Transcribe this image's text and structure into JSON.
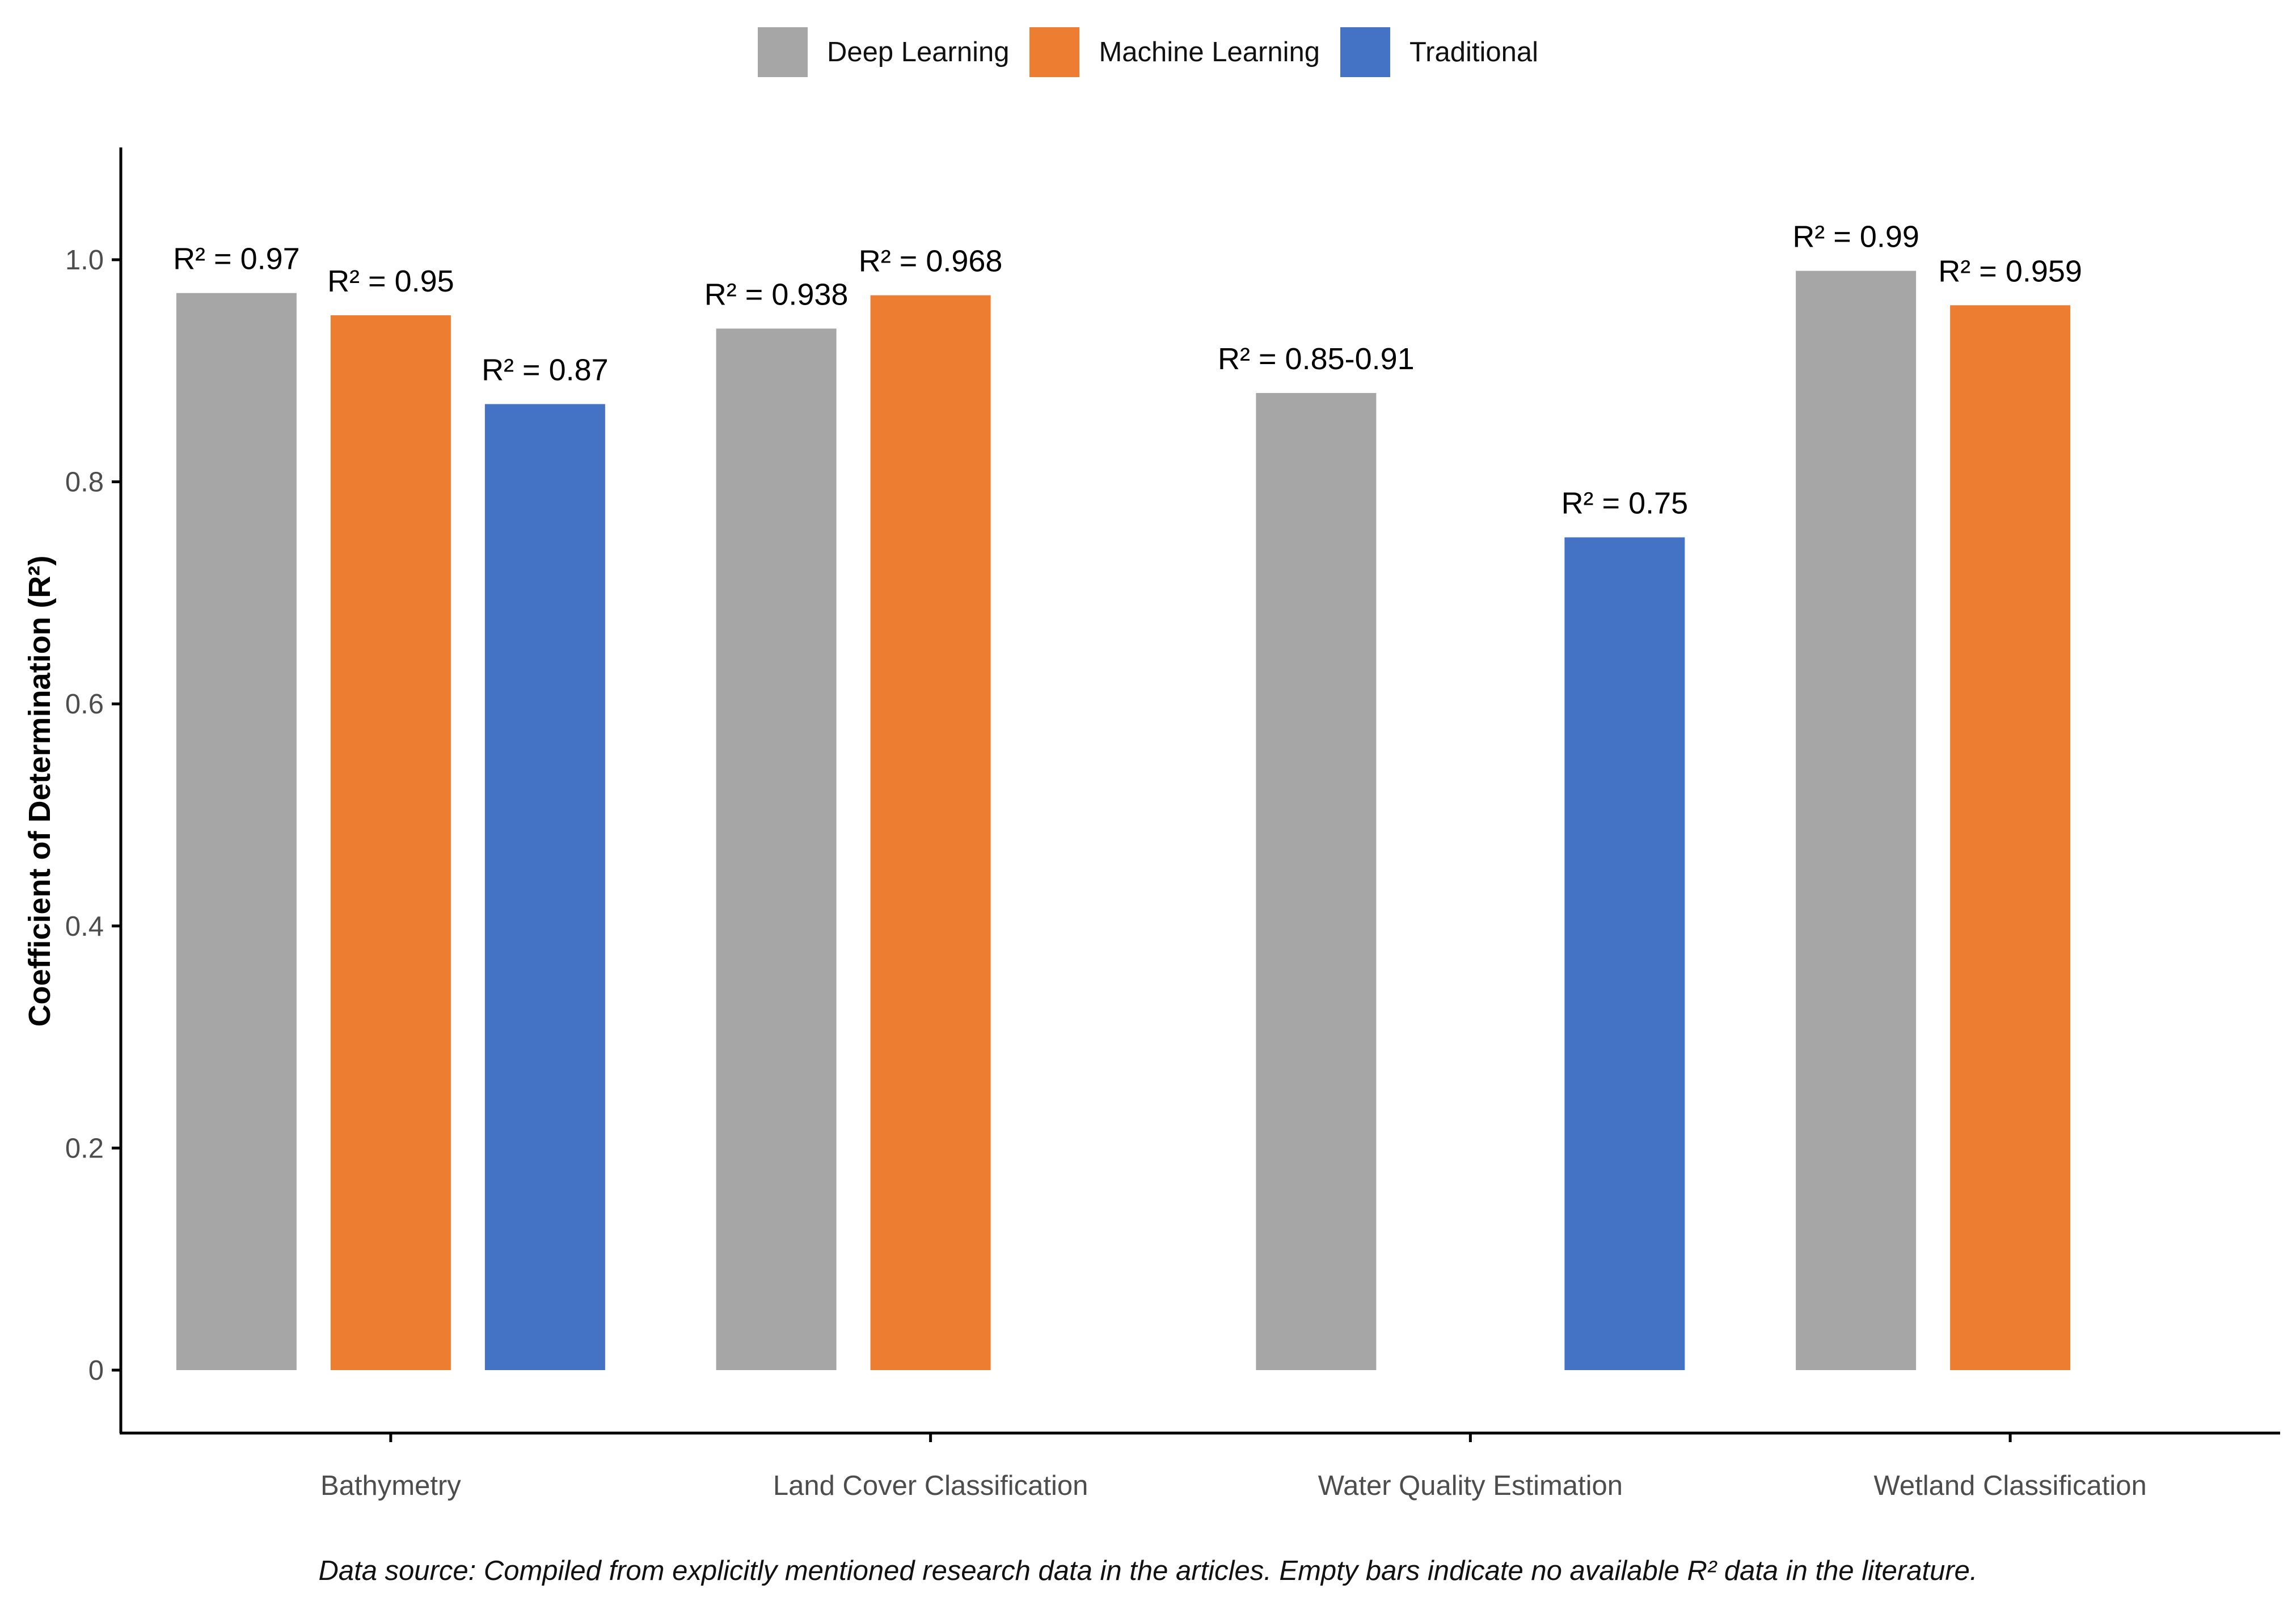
{
  "legend": {
    "placement": "top",
    "items": [
      {
        "label": "Deep Learning",
        "color": "#a6a6a6"
      },
      {
        "label": "Machine Learning",
        "color": "#ed7d31"
      },
      {
        "label": "Traditional",
        "color": "#4472c4"
      }
    ]
  },
  "caption": "Data source: Compiled from explicitly mentioned research data in the articles. Empty bars indicate no available R² data in the literature.",
  "chart_data": {
    "type": "bar",
    "categories": [
      "Bathymetry",
      "Land Cover Classification",
      "Water Quality Estimation",
      "Wetland Classification"
    ],
    "series": [
      {
        "name": "Deep Learning",
        "color": "#a6a6a6",
        "values": [
          0.97,
          0.938,
          0.88,
          0.99
        ],
        "labels": [
          "R² = 0.97",
          "R² = 0.938",
          "R² = 0.85-0.91",
          "R² = 0.99"
        ]
      },
      {
        "name": "Machine Learning",
        "color": "#ed7d31",
        "values": [
          0.95,
          0.968,
          null,
          0.959
        ],
        "labels": [
          "R² = 0.95",
          "R² = 0.968",
          "",
          "R² = 0.959"
        ]
      },
      {
        "name": "Traditional",
        "color": "#4472c4",
        "values": [
          0.87,
          null,
          0.75,
          null
        ],
        "labels": [
          "R² = 0.87",
          "",
          "R² = 0.75",
          ""
        ]
      }
    ],
    "title": "",
    "xlabel": "",
    "ylabel": "Coefficient of Determination (R²)",
    "ylim": [
      0,
      1.1
    ],
    "yticks": [
      0,
      0.2,
      0.4,
      0.6,
      0.8,
      1.0
    ],
    "ytick_labels": [
      "0",
      "0.2",
      "0.4",
      "0.6",
      "0.8",
      "1.0"
    ],
    "grid": false,
    "legend_placement": "top"
  }
}
